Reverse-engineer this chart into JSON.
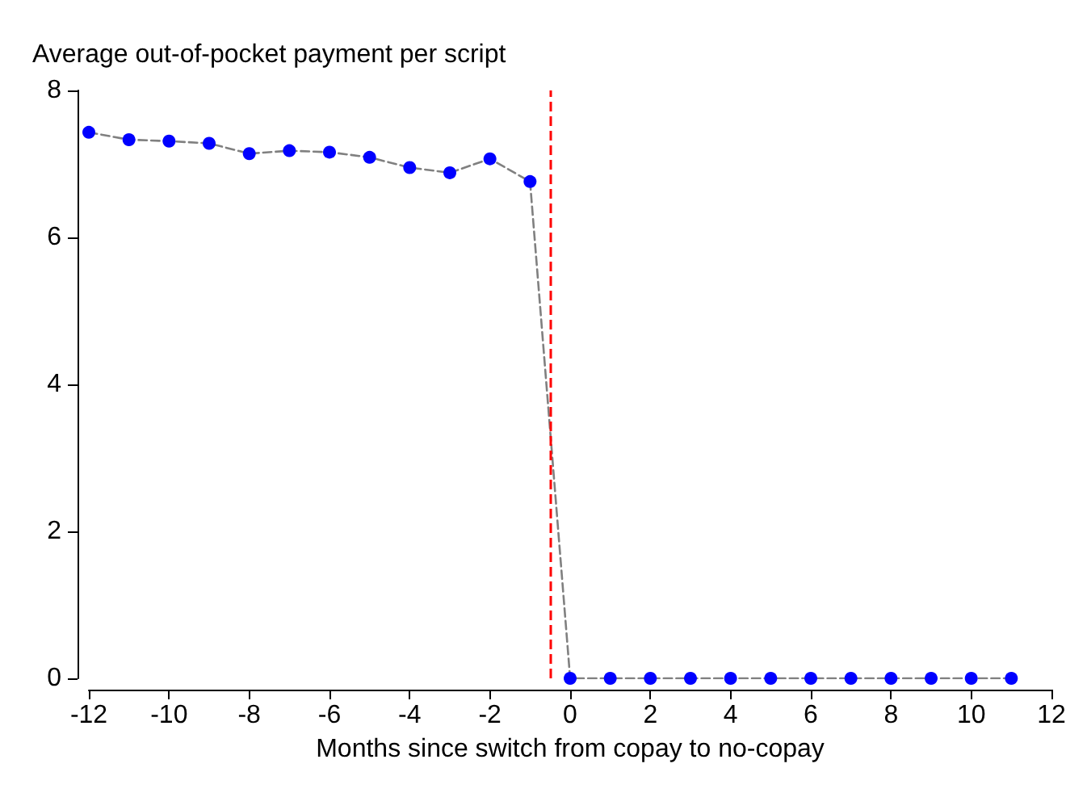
{
  "chart_data": {
    "type": "line",
    "ylabel": "Average out-of-pocket payment per script",
    "xlabel": "Months since switch from copay to no-copay",
    "x": [
      -12,
      -11,
      -10,
      -9,
      -8,
      -7,
      -6,
      -5,
      -4,
      -3,
      -2,
      -1,
      0,
      1,
      2,
      3,
      4,
      5,
      6,
      7,
      8,
      9,
      10,
      11
    ],
    "series": [
      {
        "color": "#0000ff",
        "values": [
          7.43,
          7.33,
          7.31,
          7.28,
          7.14,
          7.18,
          7.16,
          7.09,
          6.95,
          6.88,
          7.07,
          6.76,
          0,
          0,
          0,
          0,
          0,
          0,
          0,
          0,
          0,
          0,
          0,
          0
        ]
      }
    ],
    "xlim": [
      -12,
      12
    ],
    "xticks": [
      -12,
      -10,
      -8,
      -6,
      -4,
      -2,
      0,
      2,
      4,
      6,
      8,
      10,
      12
    ],
    "ylim": [
      0,
      8
    ],
    "yticks": [
      0,
      2,
      4,
      6,
      8
    ],
    "ref_lines": [
      {
        "axis": "x",
        "value": -0.5,
        "color": "#ff0000",
        "line_style": "dashed"
      }
    ],
    "marker": "circle",
    "line_style": "dashed",
    "grid": false
  }
}
